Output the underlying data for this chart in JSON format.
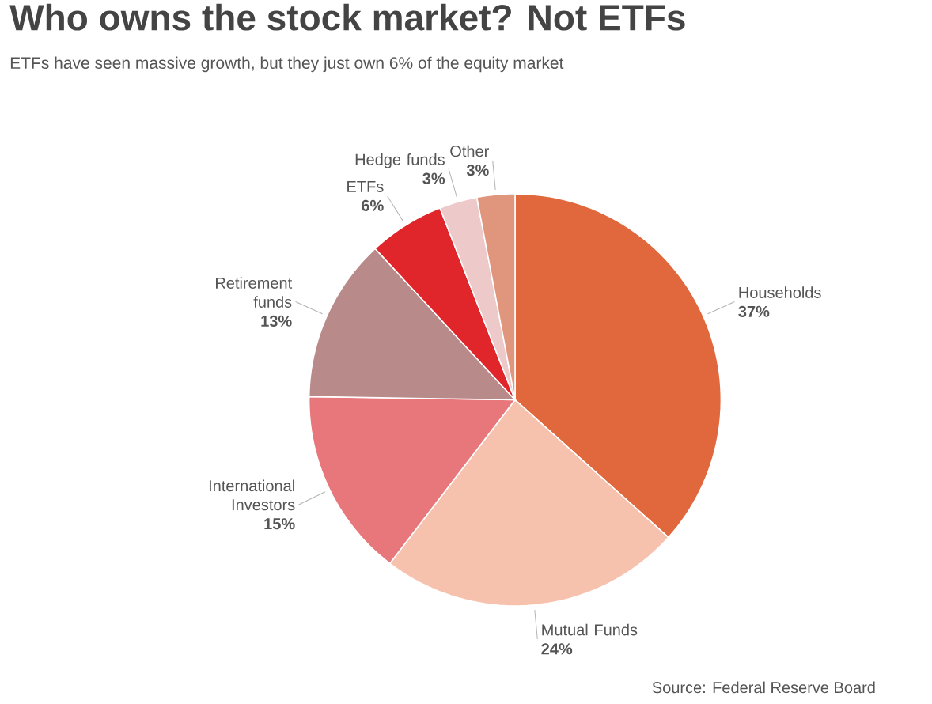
{
  "chart_data": {
    "type": "pie",
    "title": "Who owns the stock market? Not ETFs",
    "subtitle": "ETFs have seen massive growth, but they just own 6% of the equity market",
    "categories": [
      "Households",
      "Mutual Funds",
      "International Investors",
      "Retirement funds",
      "ETFs",
      "Hedge funds",
      "Other"
    ],
    "values": [
      37,
      24,
      15,
      13,
      6,
      3,
      3
    ],
    "value_labels": [
      "37%",
      "24%",
      "15%",
      "13%",
      "6%",
      "3%",
      "3%"
    ],
    "colors": [
      "#e0683c",
      "#f7c2ad",
      "#e8777b",
      "#b98a8a",
      "#e0262b",
      "#eec9c9",
      "#e0957d"
    ],
    "annotations": [
      "Source: Federal Reserve Board"
    ]
  }
}
